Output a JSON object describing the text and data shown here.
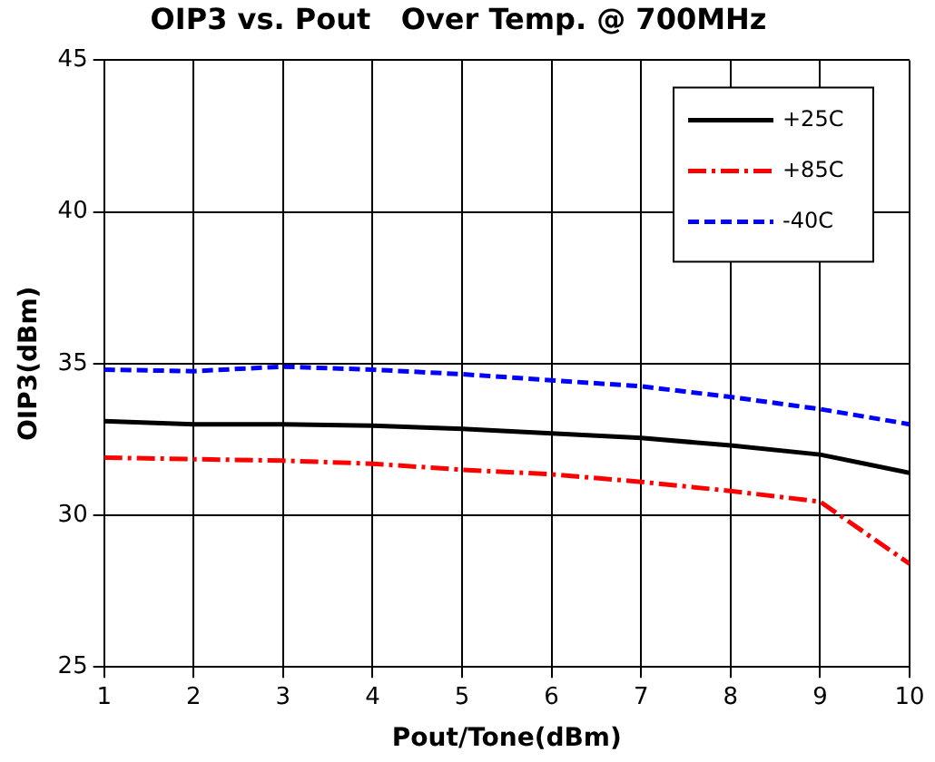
{
  "chart_data": {
    "type": "line",
    "title": "OIP3 vs. Pout   Over Temp. @ 700MHz",
    "xlabel": "Pout/Tone(dBm)",
    "ylabel": "OIP3(dBm)",
    "x": [
      1,
      2,
      3,
      4,
      5,
      6,
      7,
      8,
      9,
      10
    ],
    "series": [
      {
        "name": "+25C",
        "color": "#000000",
        "line_style": "solid",
        "values": [
          33.1,
          33.0,
          33.0,
          32.95,
          32.85,
          32.7,
          32.55,
          32.3,
          32.0,
          31.4
        ]
      },
      {
        "name": "+85C",
        "color": "#ff0000",
        "line_style": "dashdot",
        "values": [
          31.9,
          31.85,
          31.8,
          31.7,
          31.5,
          31.35,
          31.1,
          30.8,
          30.45,
          28.4
        ]
      },
      {
        "name": "-40C",
        "color": "#0000ff",
        "line_style": "dashed",
        "values": [
          34.8,
          34.75,
          34.9,
          34.8,
          34.65,
          34.45,
          34.25,
          33.9,
          33.5,
          33.0
        ]
      }
    ],
    "xlim": [
      1,
      10
    ],
    "xticks": [
      1,
      2,
      3,
      4,
      5,
      6,
      7,
      8,
      9,
      10
    ],
    "ylim": [
      25,
      45
    ],
    "yticks": [
      25,
      30,
      35,
      40,
      45
    ],
    "grid": true,
    "legend": "top right",
    "marker": "none"
  }
}
